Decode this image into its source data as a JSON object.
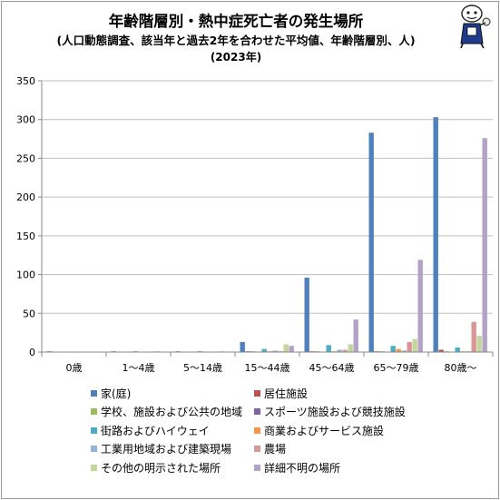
{
  "header": {
    "title": "年齢階層別・熱中症死亡者の発生場所",
    "subtitle": "(人口動態調査、該当年と過去2年を合わせた平均値、年齢階層別、人)",
    "year": "(2023年)"
  },
  "colors": [
    "#4f81bd",
    "#c0504d",
    "#9bbb59",
    "#8064a2",
    "#4bacc6",
    "#f79646",
    "#95b3d7",
    "#d99694",
    "#c3d69b",
    "#b3a2c7"
  ],
  "chart_data": {
    "type": "bar",
    "title": "年齢階層別・熱中症死亡者の発生場所",
    "categories": [
      "0歳",
      "1〜4歳",
      "5〜14歳",
      "15〜44歳",
      "45〜64歳",
      "65〜79歳",
      "80歳〜"
    ],
    "ylim": [
      0,
      350
    ],
    "yticks": [
      0,
      50,
      100,
      150,
      200,
      250,
      300,
      350
    ],
    "grid": true,
    "legend_position": "bottom",
    "series": [
      {
        "name": "家(庭)",
        "values": [
          1,
          1,
          1,
          13,
          96,
          283,
          303
        ]
      },
      {
        "name": "居住施設",
        "values": [
          0,
          0,
          0,
          1,
          1,
          1,
          3
        ]
      },
      {
        "name": "学校、施設および公共の地域",
        "values": [
          0,
          0,
          0,
          1,
          1,
          1,
          1
        ]
      },
      {
        "name": "スポーツ施設および競技施設",
        "values": [
          0,
          0,
          0,
          0,
          0,
          0,
          0
        ]
      },
      {
        "name": "街路およびハイウェイ",
        "values": [
          0,
          1,
          1,
          4,
          9,
          8,
          6
        ]
      },
      {
        "name": "商業およびサービス施設",
        "values": [
          0,
          0,
          0,
          1,
          1,
          4,
          1
        ]
      },
      {
        "name": "工業用地域および建築現場",
        "values": [
          0,
          0,
          0,
          2,
          3,
          2,
          1
        ]
      },
      {
        "name": "農場",
        "values": [
          0,
          0,
          0,
          1,
          3,
          13,
          39
        ]
      },
      {
        "name": "その他の明示された場所",
        "values": [
          0,
          1,
          1,
          10,
          10,
          17,
          21
        ]
      },
      {
        "name": "詳細不明の場所",
        "values": [
          0,
          0,
          0,
          8,
          42,
          119,
          276
        ]
      }
    ]
  }
}
